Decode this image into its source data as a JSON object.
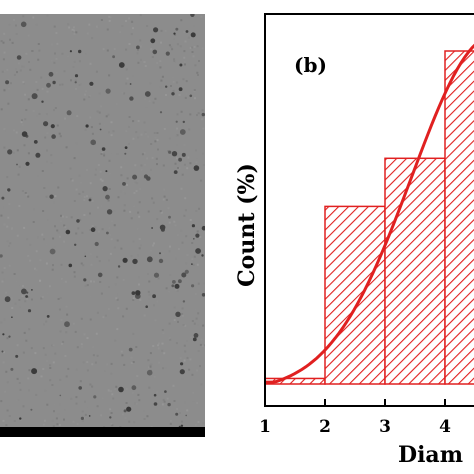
{
  "panels": [
    {
      "id": "a",
      "type": "image",
      "content": "TEM micrograph"
    },
    {
      "id": "b",
      "type": "chart",
      "label": "(b)"
    }
  ],
  "chart_data": {
    "type": "bar",
    "panel_label": "(b)",
    "xlabel": "Diam",
    "ylabel": "Count (%)",
    "x_ticks": [
      "1",
      "2",
      "3",
      "4"
    ],
    "xlim": [
      1,
      4.7
    ],
    "bins": [
      {
        "x0": 1,
        "x1": 2,
        "value": 1.5
      },
      {
        "x0": 2,
        "x1": 3,
        "value": 48
      },
      {
        "x0": 3,
        "x1": 4,
        "value": 61
      },
      {
        "x0": 4,
        "x1": 5,
        "value": 90
      }
    ],
    "fit_curve": {
      "type": "gaussian",
      "color": "#e02020"
    },
    "bar_color": "#e02020",
    "ylim": [
      0,
      100
    ]
  }
}
